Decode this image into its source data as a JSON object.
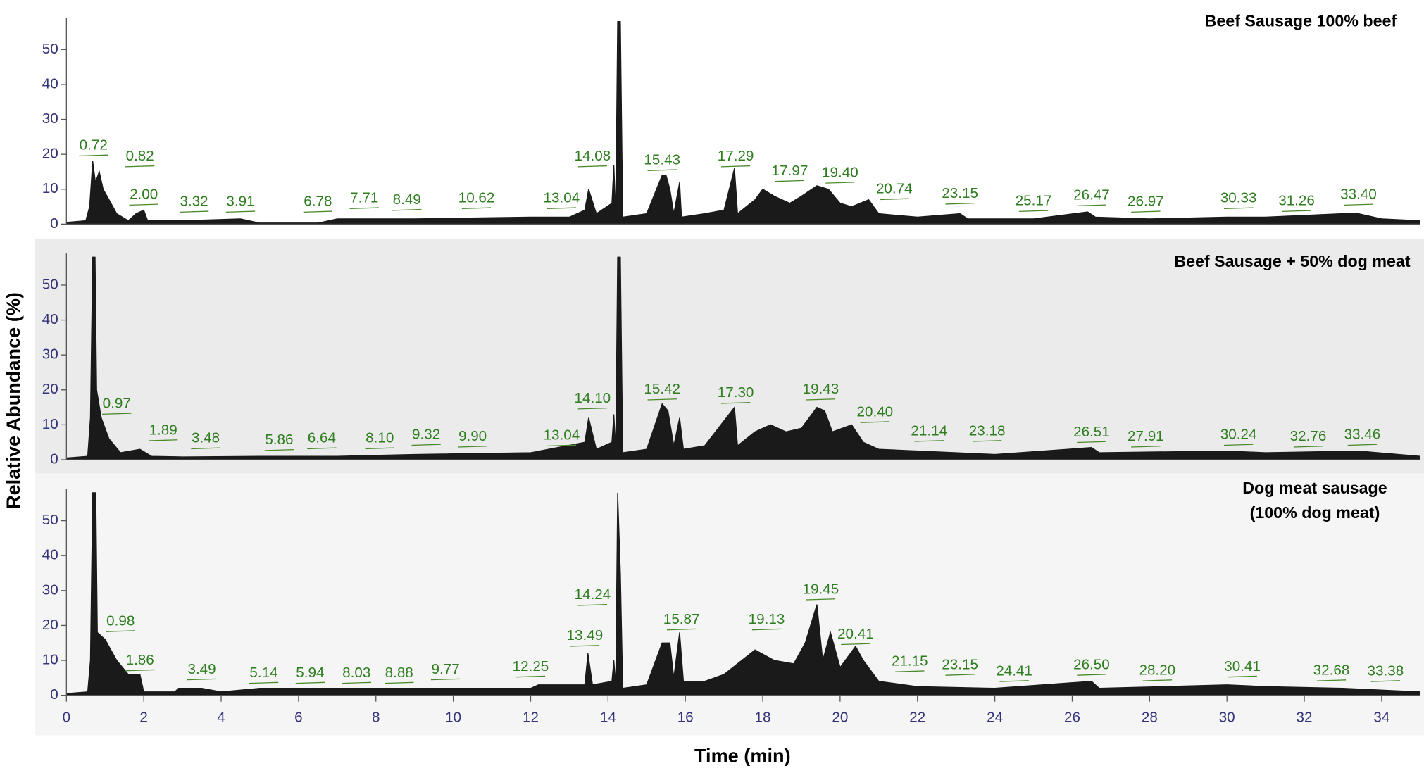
{
  "chart_data": [
    {
      "type": "chromatogram",
      "title": "Beef Sausage 100% beef",
      "color": "#1a1a1a",
      "xlim": [
        0,
        35
      ],
      "ylim": [
        0,
        58
      ],
      "yticks": [
        0,
        10,
        20,
        30,
        40,
        50
      ],
      "x": [
        0,
        0.5,
        0.6,
        0.68,
        0.75,
        0.85,
        0.95,
        1.1,
        1.3,
        1.6,
        1.8,
        2.0,
        2.1,
        3,
        4.5,
        5,
        6.5,
        7,
        9,
        12,
        13,
        13.4,
        13.5,
        13.7,
        14.1,
        14.15,
        14.2,
        14.25,
        14.32,
        14.38,
        15,
        15.4,
        15.5,
        15.6,
        15.7,
        15.85,
        15.9,
        16.5,
        17,
        17.27,
        17.35,
        17.8,
        18,
        18.3,
        18.7,
        19,
        19.4,
        19.7,
        20,
        20.3,
        20.74,
        21,
        22,
        23.1,
        23.3,
        25,
        26.4,
        26.6,
        28,
        30,
        31,
        33,
        33.4,
        34,
        35
      ],
      "values": [
        0.5,
        1,
        5,
        18,
        12,
        15,
        10,
        7,
        3,
        1,
        3,
        4,
        1,
        1,
        1.5,
        0.3,
        0.3,
        1.5,
        1.5,
        2,
        2,
        4,
        10,
        3,
        6,
        17,
        3,
        58,
        58,
        2,
        3,
        14,
        14,
        10,
        3,
        12,
        2,
        3,
        4,
        16,
        3,
        7,
        10,
        8,
        6,
        8,
        11,
        10,
        6,
        5,
        7,
        3,
        2,
        3,
        1.5,
        1.5,
        3.5,
        2,
        1.5,
        2,
        2,
        3,
        3,
        1.5,
        1
      ],
      "annotations": [
        {
          "text": "0.72",
          "x": 0.7,
          "y": 22.4
        },
        {
          "text": "0.82",
          "x": 1.9,
          "y": 19.3
        },
        {
          "text": "2.00",
          "x": 2.0,
          "y": 8.3
        },
        {
          "text": "3.32",
          "x": 3.3,
          "y": 6.3
        },
        {
          "text": "3.91",
          "x": 4.5,
          "y": 6.3
        },
        {
          "text": "6.78",
          "x": 6.5,
          "y": 6.3
        },
        {
          "text": "7.71",
          "x": 7.7,
          "y": 7.3
        },
        {
          "text": "8.49",
          "x": 8.8,
          "y": 6.8
        },
        {
          "text": "10.62",
          "x": 10.6,
          "y": 7.3
        },
        {
          "text": "13.04",
          "x": 12.8,
          "y": 7.3
        },
        {
          "text": "14.08",
          "x": 13.6,
          "y": 19.3
        },
        {
          "text": "15.43",
          "x": 15.4,
          "y": 18.2
        },
        {
          "text": "17.29",
          "x": 17.3,
          "y": 19.3
        },
        {
          "text": "17.97",
          "x": 18.7,
          "y": 15.1
        },
        {
          "text": "19.40",
          "x": 20.0,
          "y": 14.6
        },
        {
          "text": "20.74",
          "x": 21.4,
          "y": 9.9
        },
        {
          "text": "23.15",
          "x": 23.1,
          "y": 8.6
        },
        {
          "text": "25.17",
          "x": 25.0,
          "y": 6.5
        },
        {
          "text": "26.47",
          "x": 26.5,
          "y": 8.1
        },
        {
          "text": "26.97",
          "x": 27.9,
          "y": 6.3
        },
        {
          "text": "30.33",
          "x": 30.3,
          "y": 7.3
        },
        {
          "text": "31.26",
          "x": 31.8,
          "y": 6.5
        },
        {
          "text": "33.40",
          "x": 33.4,
          "y": 8.3
        }
      ]
    },
    {
      "type": "chromatogram",
      "title": "Beef Sausage + 50% dog meat",
      "color": "#1a1a1a",
      "y_label": "Relative Abundance (%)",
      "xlim": [
        0,
        35
      ],
      "ylim": [
        0,
        58
      ],
      "yticks": [
        0,
        10,
        20,
        30,
        40,
        50
      ],
      "x": [
        0,
        0.55,
        0.62,
        0.68,
        0.74,
        0.78,
        0.9,
        1.1,
        1.4,
        1.9,
        2.2,
        3,
        5,
        7,
        9,
        12,
        13.4,
        13.5,
        13.7,
        14.1,
        14.15,
        14.2,
        14.25,
        14.32,
        14.38,
        15,
        15.4,
        15.55,
        15.7,
        15.85,
        15.95,
        16.5,
        17.27,
        17.35,
        17.8,
        18.2,
        18.6,
        19,
        19.4,
        19.6,
        19.8,
        20.3,
        20.6,
        21,
        23,
        24,
        26.5,
        26.7,
        30,
        31,
        33.4,
        35
      ],
      "values": [
        0.5,
        1,
        12,
        58,
        58,
        20,
        12,
        6,
        2,
        3,
        1,
        0.8,
        1,
        1,
        1.5,
        2,
        5,
        12,
        3,
        5,
        13,
        3,
        58,
        58,
        2,
        3,
        16,
        14,
        4,
        12,
        3,
        4,
        15,
        4,
        8,
        10,
        8,
        9,
        15,
        14,
        8,
        10,
        5,
        3,
        2,
        1.5,
        3.5,
        2,
        2.5,
        2,
        2.5,
        1
      ],
      "annotations": [
        {
          "text": "0.97",
          "x": 1.3,
          "y": 15.9
        },
        {
          "text": "1.89",
          "x": 2.5,
          "y": 8.3
        },
        {
          "text": "3.48",
          "x": 3.6,
          "y": 6
        },
        {
          "text": "5.86",
          "x": 5.5,
          "y": 5.5
        },
        {
          "text": "6.64",
          "x": 6.6,
          "y": 6
        },
        {
          "text": "8.10",
          "x": 8.1,
          "y": 6
        },
        {
          "text": "9.32",
          "x": 9.3,
          "y": 7
        },
        {
          "text": "9.90",
          "x": 10.5,
          "y": 6.5
        },
        {
          "text": "13.04",
          "x": 12.8,
          "y": 6.8
        },
        {
          "text": "14.10",
          "x": 13.6,
          "y": 17.4
        },
        {
          "text": "15.42",
          "x": 15.4,
          "y": 20
        },
        {
          "text": "17.30",
          "x": 17.3,
          "y": 19
        },
        {
          "text": "19.43",
          "x": 19.5,
          "y": 20
        },
        {
          "text": "20.40",
          "x": 20.9,
          "y": 13.5
        },
        {
          "text": "21.14",
          "x": 22.3,
          "y": 8.1
        },
        {
          "text": "23.18",
          "x": 23.8,
          "y": 8.1
        },
        {
          "text": "26.51",
          "x": 26.5,
          "y": 7.8
        },
        {
          "text": "27.91",
          "x": 27.9,
          "y": 6.5
        },
        {
          "text": "30.24",
          "x": 30.3,
          "y": 7
        },
        {
          "text": "32.76",
          "x": 32.1,
          "y": 6.5
        },
        {
          "text": "33.46",
          "x": 33.5,
          "y": 7
        }
      ]
    },
    {
      "type": "chromatogram",
      "title": [
        "Dog meat sausage",
        "(100% dog meat)"
      ],
      "color": "#1a1a1a",
      "x_label": "Time (min)",
      "xlim": [
        0,
        35
      ],
      "xticks": [
        0,
        2,
        4,
        6,
        8,
        10,
        12,
        14,
        16,
        18,
        20,
        22,
        24,
        26,
        28,
        30,
        32,
        34
      ],
      "ylim": [
        0,
        58
      ],
      "yticks": [
        0,
        10,
        20,
        30,
        40,
        50
      ],
      "x": [
        0,
        0.55,
        0.62,
        0.68,
        0.76,
        0.8,
        1.0,
        1.3,
        1.6,
        1.9,
        2.0,
        2.8,
        2.9,
        3.5,
        4,
        5,
        7,
        9,
        12,
        12.2,
        13.4,
        13.48,
        13.6,
        14.1,
        14.15,
        14.2,
        14.25,
        14.32,
        14.38,
        15,
        15.4,
        15.6,
        15.7,
        15.85,
        15.95,
        16.5,
        17,
        17.8,
        18.3,
        18.8,
        19.1,
        19.4,
        19.55,
        19.75,
        20,
        20.4,
        20.6,
        21,
        22,
        24,
        26.5,
        26.7,
        30,
        31,
        33,
        35
      ],
      "values": [
        0.5,
        1,
        10,
        58,
        58,
        18,
        16,
        10,
        6,
        6,
        1,
        1,
        2,
        2,
        1,
        2,
        2,
        2,
        2,
        3,
        3,
        12,
        3,
        4,
        10,
        3,
        58,
        35,
        2,
        3,
        15,
        15,
        5,
        18,
        4,
        4,
        6,
        13,
        10,
        9,
        15,
        26,
        10,
        18,
        8,
        14,
        10,
        4,
        2.5,
        2,
        4,
        2,
        3,
        2.5,
        2,
        1
      ],
      "annotations": [
        {
          "text": "0.98",
          "x": 1.4,
          "y": 21.1
        },
        {
          "text": "1.86",
          "x": 1.9,
          "y": 9.9
        },
        {
          "text": "3.49",
          "x": 3.5,
          "y": 7.3
        },
        {
          "text": "5.14",
          "x": 5.1,
          "y": 6.3
        },
        {
          "text": "5.94",
          "x": 6.3,
          "y": 6.3
        },
        {
          "text": "8.03",
          "x": 7.5,
          "y": 6.3
        },
        {
          "text": "8.88",
          "x": 8.6,
          "y": 6.3
        },
        {
          "text": "9.77",
          "x": 9.8,
          "y": 7.3
        },
        {
          "text": "12.25",
          "x": 12.0,
          "y": 8.1
        },
        {
          "text": "13.49",
          "x": 13.4,
          "y": 16.9
        },
        {
          "text": "14.24",
          "x": 13.6,
          "y": 28.6
        },
        {
          "text": "15.87",
          "x": 15.9,
          "y": 21.6
        },
        {
          "text": "19.13",
          "x": 18.1,
          "y": 21.6
        },
        {
          "text": "19.45",
          "x": 19.5,
          "y": 30.2
        },
        {
          "text": "20.41",
          "x": 20.4,
          "y": 17.4
        },
        {
          "text": "21.15",
          "x": 21.8,
          "y": 9.6
        },
        {
          "text": "23.15",
          "x": 23.1,
          "y": 8.6
        },
        {
          "text": "24.41",
          "x": 24.5,
          "y": 6.8
        },
        {
          "text": "26.50",
          "x": 26.5,
          "y": 8.6
        },
        {
          "text": "28.20",
          "x": 28.2,
          "y": 7
        },
        {
          "text": "30.41",
          "x": 30.4,
          "y": 8.1
        },
        {
          "text": "32.68",
          "x": 32.7,
          "y": 7
        },
        {
          "text": "33.38",
          "x": 34.1,
          "y": 6.8
        }
      ]
    }
  ]
}
